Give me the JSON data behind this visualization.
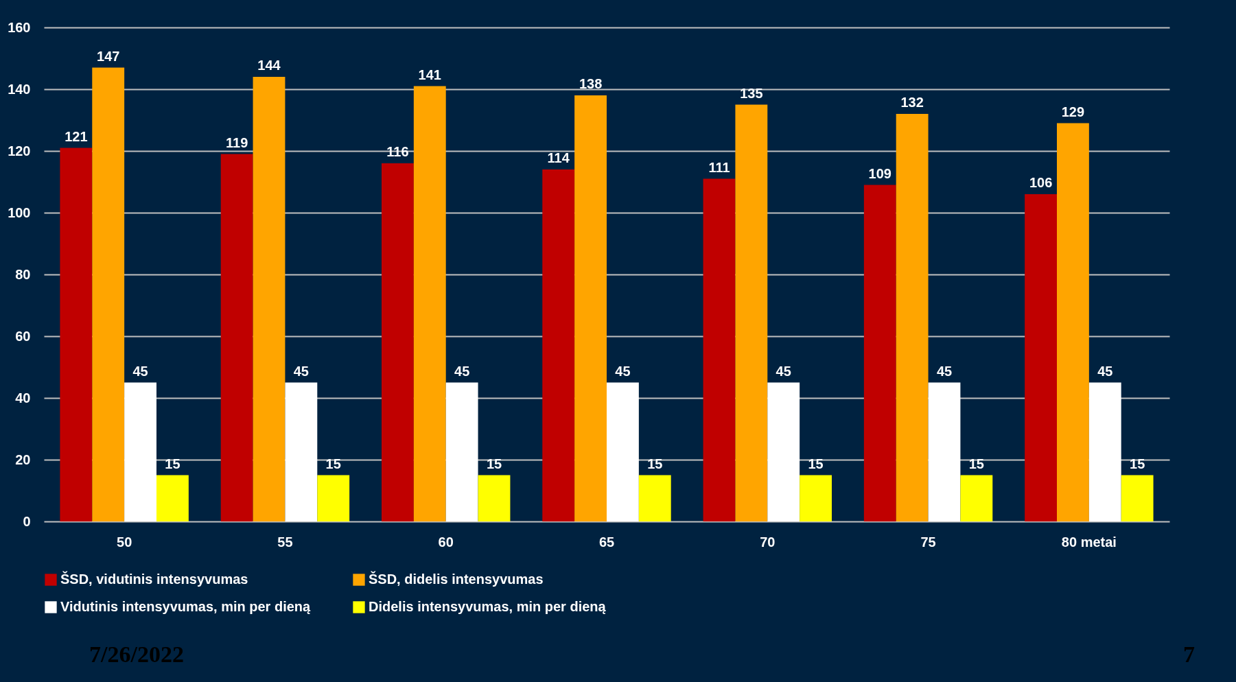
{
  "chart_data": {
    "type": "bar",
    "categories": [
      "50",
      "55",
      "60",
      "65",
      "70",
      "75",
      "80 metai"
    ],
    "series": [
      {
        "name": "ŠSD, vidutinis intensyvumas",
        "color": "#c00000",
        "values": [
          121,
          119,
          116,
          114,
          111,
          109,
          106
        ]
      },
      {
        "name": "ŠSD, didelis intensyvumas",
        "color": "#ffa500",
        "values": [
          147,
          144,
          141,
          138,
          135,
          132,
          129
        ]
      },
      {
        "name": "Vidutinis intensyvumas, min per dieną",
        "color": "#ffffff",
        "values": [
          45,
          45,
          45,
          45,
          45,
          45,
          45
        ]
      },
      {
        "name": "Didelis intensyvumas, min per dieną",
        "color": "#ffff00",
        "values": [
          15,
          15,
          15,
          15,
          15,
          15,
          15
        ]
      }
    ],
    "ylim": [
      0,
      160
    ],
    "yticks": [
      0,
      20,
      40,
      60,
      80,
      100,
      120,
      140,
      160
    ],
    "grid": "y",
    "legend": "bottom",
    "data_labels": true,
    "annotations": [
      "7/26/2022",
      "7"
    ]
  }
}
